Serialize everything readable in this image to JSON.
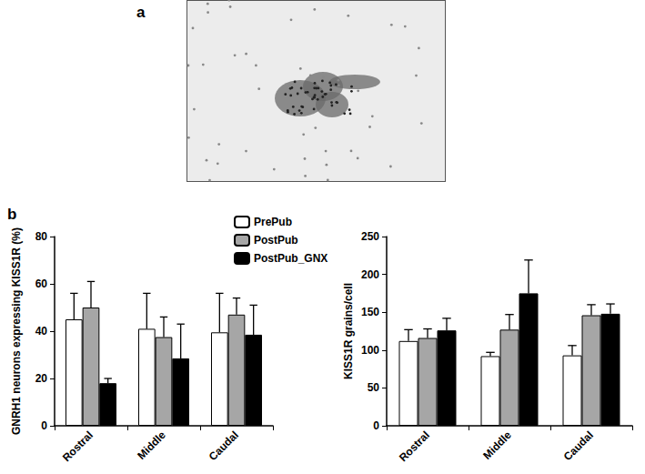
{
  "panel_labels": [
    "a",
    "b"
  ],
  "chart_data": [
    {
      "type": "bar",
      "categories": [
        "Rostral",
        "Middle",
        "Caudal"
      ],
      "y_label": "GNRH1 neurons expressing KISS1R (%)",
      "ylim": [
        0,
        80
      ],
      "yticks": [
        0,
        20,
        40,
        60,
        80
      ],
      "legend": "top",
      "series": [
        {
          "name": "PrePub",
          "color": "#ffffff",
          "values": [
            45,
            41,
            39.5
          ],
          "errors": [
            11,
            15,
            16.5
          ]
        },
        {
          "name": "PostPub",
          "color": "#a6a6a6",
          "values": [
            50,
            37.5,
            47
          ],
          "errors": [
            11,
            8.5,
            7
          ]
        },
        {
          "name": "PostPub_GNX",
          "color": "#000000",
          "values": [
            18,
            28.5,
            38.5
          ],
          "errors": [
            2,
            14.5,
            12.5
          ]
        }
      ]
    },
    {
      "type": "bar",
      "categories": [
        "Rostral",
        "Middle",
        "Caudal"
      ],
      "y_label": "KISS1R grains/cell",
      "ylim": [
        0,
        250
      ],
      "yticks": [
        0,
        50,
        100,
        150,
        200,
        250
      ],
      "series": [
        {
          "name": "PrePub",
          "color": "#ffffff",
          "values": [
            112,
            92,
            93
          ],
          "errors": [
            15,
            5,
            13
          ]
        },
        {
          "name": "PostPub",
          "color": "#a6a6a6",
          "values": [
            116,
            127,
            146
          ],
          "errors": [
            12,
            20,
            14
          ]
        },
        {
          "name": "PostPub_GNX",
          "color": "#000000",
          "values": [
            126,
            175,
            148
          ],
          "errors": [
            16,
            44,
            13
          ]
        }
      ]
    }
  ]
}
